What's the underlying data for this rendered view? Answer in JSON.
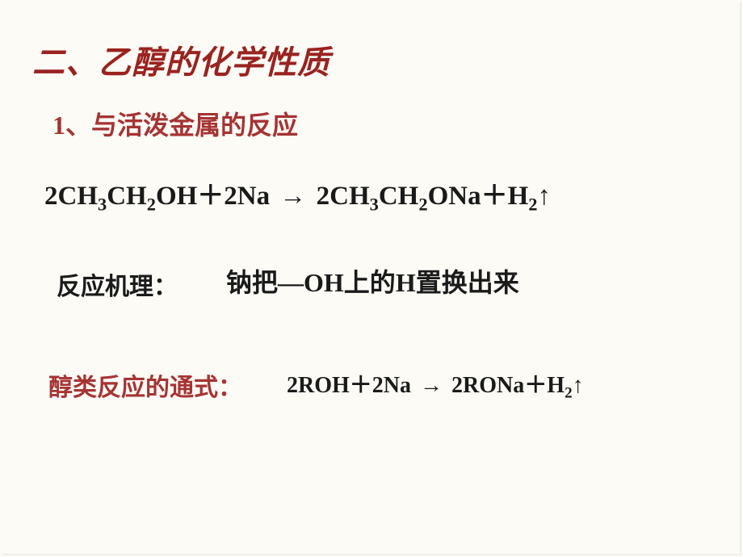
{
  "slide": {
    "background_color": "#fcfbf6",
    "heading1": {
      "text": "二、乙醇的化学性质",
      "color": "#9a2320",
      "fontsize": 40,
      "weight": "bold",
      "italic": true
    },
    "heading2": {
      "number": "1",
      "text": "、与活泼金属的反应",
      "color": "#a53433",
      "fontsize": 32,
      "weight": "bold"
    },
    "equation1": {
      "parts": {
        "p1": "2CH",
        "s1": "3",
        "p2": "CH",
        "s2": "2",
        "p3": "OH",
        "plus1": "＋",
        "p4": "2Na",
        "arrow": "→",
        "p5": "2CH",
        "s3": "3",
        "p6": "CH",
        "s4": "2",
        "p7": "ONa",
        "plus2": "＋",
        "p8": "H",
        "s5": "2",
        "up": "↑"
      },
      "color": "#1a1a1a",
      "fontsize": 33,
      "weight": "bold",
      "font": "Times New Roman"
    },
    "mechanism": {
      "label": "反应机理：",
      "text_pre": "钠把—",
      "oh": "OH",
      "text_mid": "上的",
      "h": "H",
      "text_post": "置换出来",
      "label_color": "#1a1a1a",
      "fontsize": 30
    },
    "general": {
      "label": "醇类反应的通式：",
      "label_color": "#a53433",
      "label_fontsize": 30,
      "equation": {
        "p1": "2ROH",
        "plus1": "＋",
        "p2": "2Na",
        "arrow": "→",
        "p3": "2RONa",
        "plus2": "＋",
        "p4": "H",
        "s1": "2",
        "up": "↑"
      },
      "eq_color": "#1a1a1a",
      "eq_fontsize": 28,
      "eq_font": "Times New Roman"
    }
  }
}
